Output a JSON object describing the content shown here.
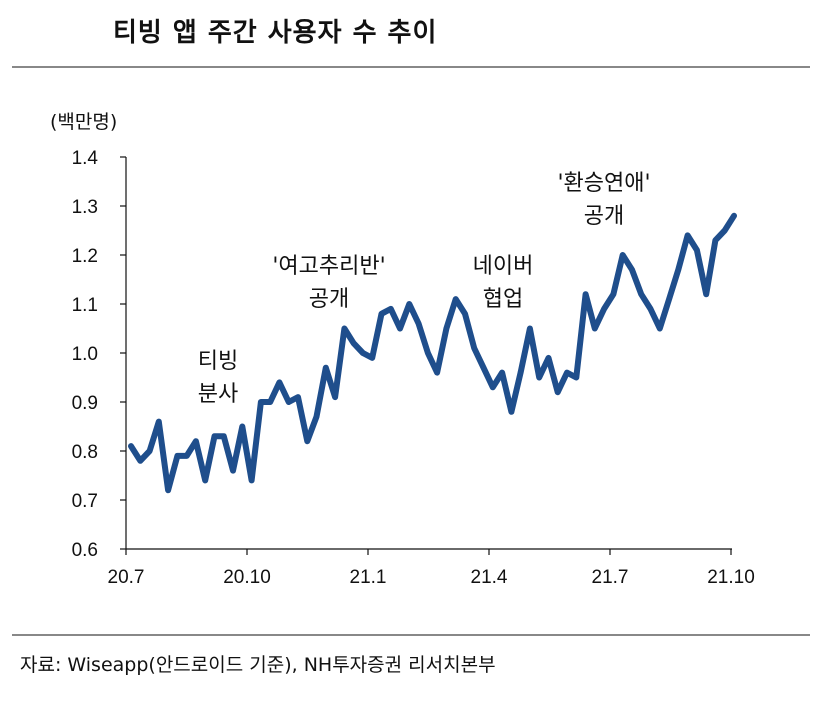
{
  "header": {
    "title": "티빙 앱 주간 사용자 수 추이"
  },
  "footer": {
    "source": "자료: Wiseapp(안드로이드 기준), NH투자증권 리서치본부"
  },
  "chart_data": {
    "type": "line",
    "title": "티빙 앱 주간 사용자 수 추이",
    "ylabel": "(백만명)",
    "xlabel": "",
    "ylim": [
      0.6,
      1.4
    ],
    "yticks": [
      0.6,
      0.7,
      0.8,
      0.9,
      1.0,
      1.1,
      1.2,
      1.3,
      1.4
    ],
    "ytick_labels": [
      "0.6",
      "0.7",
      "0.8",
      "0.9",
      "1.0",
      "1.1",
      "1.2",
      "1.3",
      "1.4"
    ],
    "xticks": [
      "20.7",
      "20.10",
      "21.1",
      "21.4",
      "21.7",
      "21.10"
    ],
    "grid": false,
    "legend": "none",
    "line_color": "#1f4e8c",
    "series": [
      {
        "values": [
          0.81,
          0.78,
          0.8,
          0.86,
          0.72,
          0.79,
          0.79,
          0.82,
          0.74,
          0.83,
          0.83,
          0.76,
          0.85,
          0.74,
          0.9,
          0.9,
          0.94,
          0.9,
          0.91,
          0.82,
          0.87,
          0.97,
          0.91,
          1.05,
          1.02,
          1.0,
          0.99,
          1.08,
          1.09,
          1.05,
          1.1,
          1.06,
          1.0,
          0.96,
          1.05,
          1.11,
          1.08,
          1.01,
          0.97,
          0.93,
          0.96,
          0.88,
          0.96,
          1.05,
          0.95,
          0.99,
          0.92,
          0.96,
          0.95,
          1.12,
          1.05,
          1.09,
          1.12,
          1.2,
          1.17,
          1.12,
          1.09,
          1.05,
          1.11,
          1.17,
          1.24,
          1.21,
          1.12,
          1.23,
          1.25,
          1.28
        ]
      }
    ],
    "annotations": [
      {
        "lines": [
          "티빙",
          "분사"
        ],
        "week": 11
      },
      {
        "lines": [
          "'여고추리반'",
          "공개"
        ],
        "week": 25
      },
      {
        "lines": [
          "네이버",
          "협업"
        ],
        "week": 40
      },
      {
        "lines": [
          "'환승연애'",
          "공개"
        ],
        "week": 57
      }
    ]
  }
}
